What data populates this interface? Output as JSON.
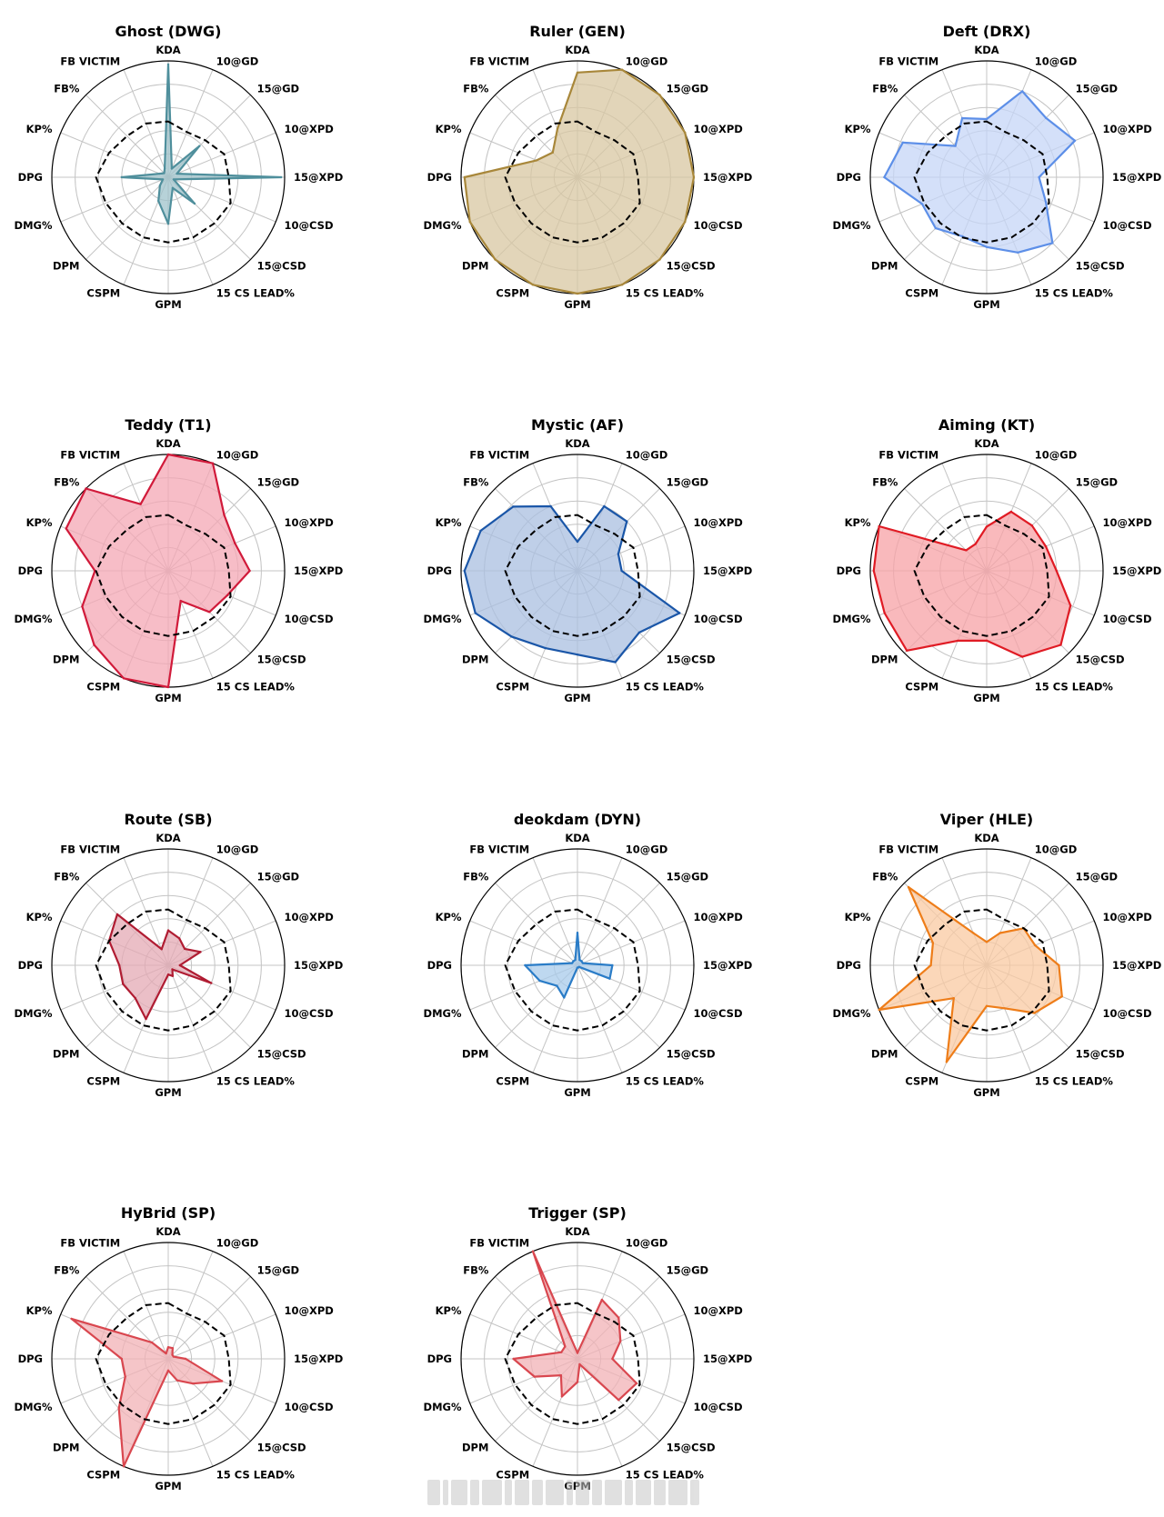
{
  "figure": {
    "axes": [
      "KDA",
      "10@GD",
      "15@GD",
      "10@XPD",
      "15@XPD",
      "10@CSD",
      "15@CSD",
      "15 CS LEAD%",
      "GPM",
      "CSPM",
      "DPM",
      "DMG%",
      "DPG",
      "KP%",
      "FB%",
      "FB VICTIM"
    ]
  },
  "chart_data": [
    {
      "type": "radar",
      "title": "Ghost (DWG)",
      "color": "#4f8f9c",
      "fill": "#9fc3cb",
      "values": [
        0.97,
        0.08,
        0.38,
        0.08,
        0.97,
        0.05,
        0.32,
        0.1,
        0.4,
        0.22,
        0.1,
        0.05,
        0.4,
        0.08,
        0.05,
        0.08
      ]
    },
    {
      "type": "radar",
      "title": "Ruler (GEN)",
      "color": "#a8873a",
      "fill": "#d8c7a2",
      "values": [
        0.9,
        1.0,
        1.0,
        1.0,
        1.0,
        1.0,
        1.0,
        1.0,
        1.0,
        1.0,
        1.0,
        1.0,
        0.97,
        0.38,
        0.3,
        0.45
      ]
    },
    {
      "type": "radar",
      "title": "Deft (DRX)",
      "color": "#5d8fe8",
      "fill": "#c6d6f7",
      "values": [
        0.5,
        0.8,
        0.72,
        0.82,
        0.45,
        0.55,
        0.8,
        0.7,
        0.6,
        0.55,
        0.62,
        0.6,
        0.88,
        0.78,
        0.38,
        0.55
      ]
    },
    {
      "type": "radar",
      "title": "Teddy (T1)",
      "color": "#d11a3a",
      "fill": "#f4a7b4",
      "values": [
        1.0,
        1.0,
        0.68,
        0.62,
        0.7,
        0.55,
        0.5,
        0.28,
        1.0,
        1.0,
        0.9,
        0.8,
        0.63,
        0.95,
        1.0,
        0.62
      ]
    },
    {
      "type": "radar",
      "title": "Mystic (AF)",
      "color": "#1a56a8",
      "fill": "#a9bfe0",
      "values": [
        0.25,
        0.6,
        0.6,
        0.38,
        0.38,
        0.95,
        0.75,
        0.85,
        0.72,
        0.72,
        0.8,
        0.95,
        0.97,
        0.9,
        0.78,
        0.6
      ]
    },
    {
      "type": "radar",
      "title": "Aiming (KT)",
      "color": "#e01b24",
      "fill": "#f7a1a5",
      "values": [
        0.38,
        0.55,
        0.55,
        0.55,
        0.6,
        0.78,
        0.9,
        0.8,
        0.6,
        0.65,
        0.97,
        0.95,
        0.97,
        1.0,
        0.25,
        0.25
      ]
    },
    {
      "type": "radar",
      "title": "Route (SB)",
      "color": "#b01c32",
      "fill": "#e4aab4",
      "values": [
        0.3,
        0.25,
        0.2,
        0.3,
        0.1,
        0.4,
        0.05,
        0.1,
        0.08,
        0.5,
        0.4,
        0.42,
        0.42,
        0.55,
        0.62,
        0.15
      ]
    },
    {
      "type": "radar",
      "title": "deokdam (DYN)",
      "color": "#2a7cc7",
      "fill": "#a8cbeb",
      "values": [
        0.28,
        0.05,
        0.05,
        0.05,
        0.3,
        0.3,
        0.02,
        0.02,
        0.02,
        0.3,
        0.25,
        0.35,
        0.45,
        0.05,
        0.05,
        0.05
      ]
    },
    {
      "type": "radar",
      "title": "Viper (HLE)",
      "color": "#ee7d19",
      "fill": "#f9c9a1",
      "values": [
        0.2,
        0.3,
        0.45,
        0.45,
        0.62,
        0.7,
        0.58,
        0.4,
        0.35,
        0.9,
        0.4,
        1.0,
        0.48,
        0.5,
        0.95,
        0.3
      ]
    },
    {
      "type": "radar",
      "title": "HyBrid (SP)",
      "color": "#d9474f",
      "fill": "#f2b2b5",
      "values": [
        0.1,
        0.1,
        0.05,
        0.05,
        0.15,
        0.5,
        0.3,
        0.2,
        0.1,
        1.0,
        0.6,
        0.4,
        0.4,
        0.9,
        0.2,
        0.05
      ]
    },
    {
      "type": "radar",
      "title": "Trigger (SP)",
      "color": "#d9474f",
      "fill": "#f2b2b5",
      "values": [
        0.05,
        0.55,
        0.5,
        0.4,
        0.3,
        0.55,
        0.5,
        0.05,
        0.2,
        0.35,
        0.2,
        0.4,
        0.55,
        0.15,
        0.15,
        1.0
      ]
    }
  ],
  "average": [
    0.48,
    0.42,
    0.45,
    0.52,
    0.52,
    0.58,
    0.56,
    0.56,
    0.56,
    0.56,
    0.56,
    0.58,
    0.62,
    0.55,
    0.5,
    0.5
  ]
}
